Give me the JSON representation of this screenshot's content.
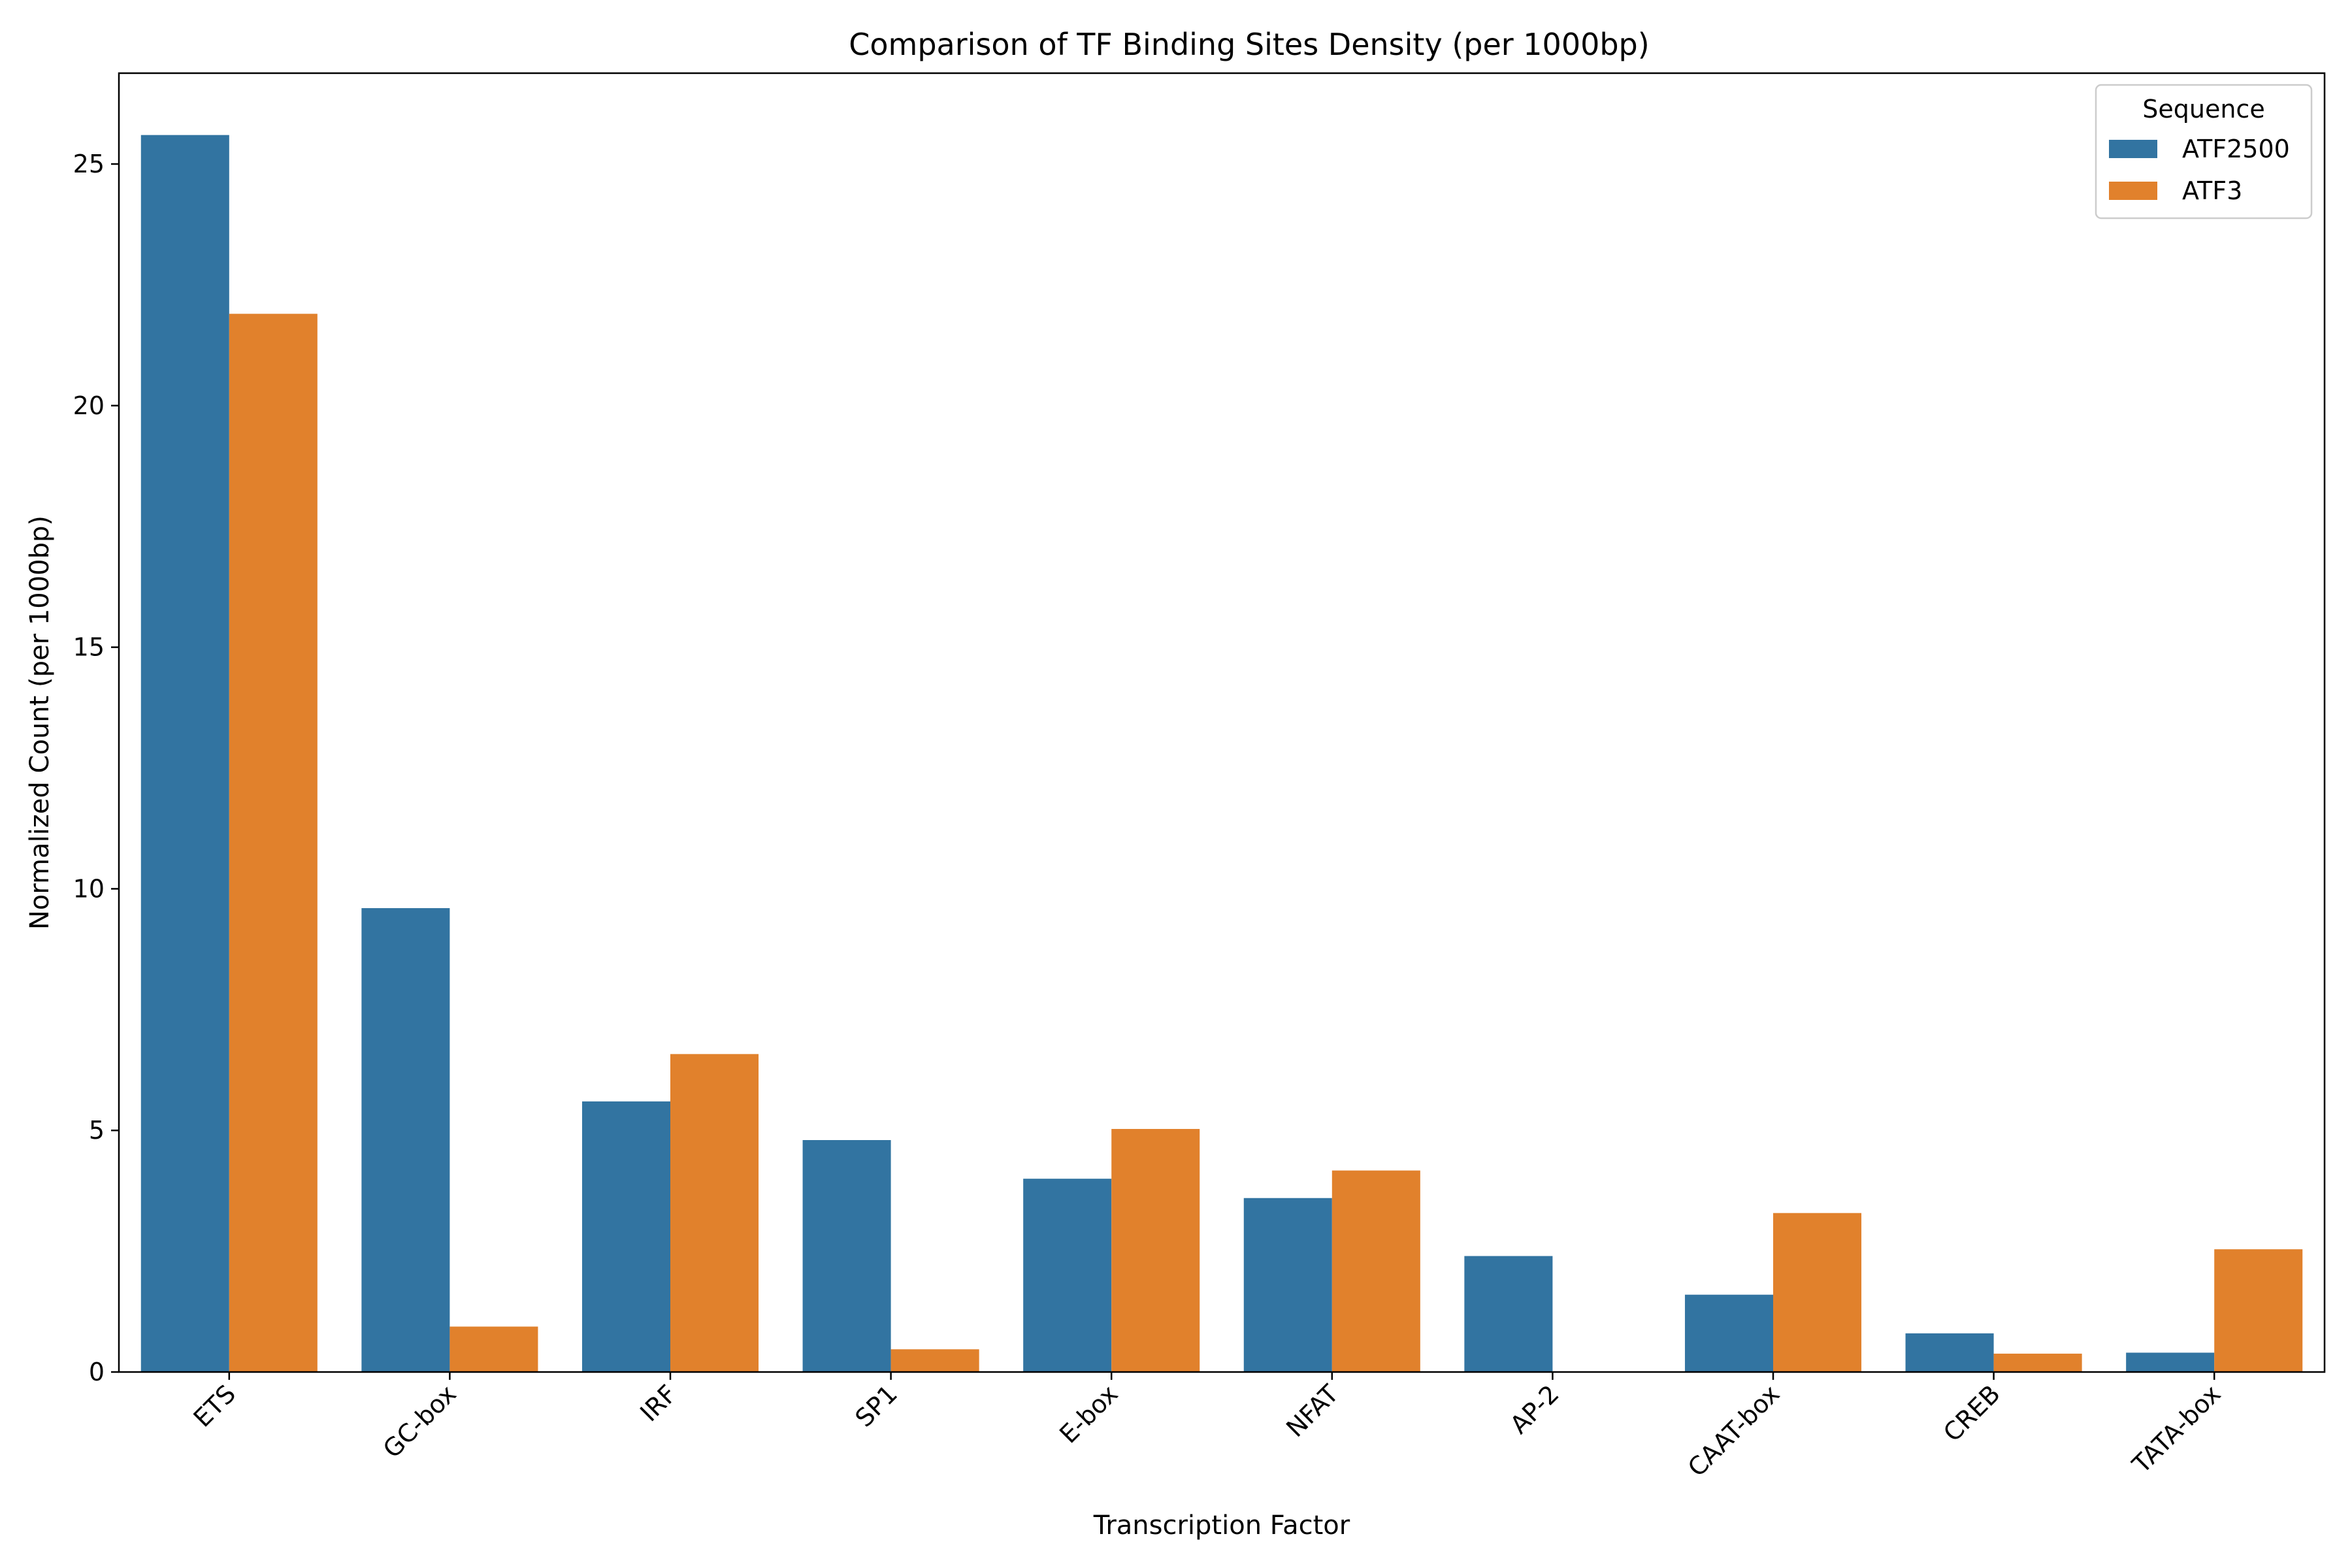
{
  "chart_data": {
    "type": "bar",
    "title": "Comparison of TF Binding Sites Density (per 1000bp)",
    "xlabel": "Transcription Factor",
    "ylabel": "Normalized Count (per 1000bp)",
    "categories": [
      "ETS",
      "GC-box",
      "IRF",
      "SP1",
      "E-box",
      "NFAT",
      "AP-2",
      "CAAT-box",
      "CREB",
      "TATA-box"
    ],
    "series": [
      {
        "name": "ATF2500",
        "color": "#3274a1",
        "values": [
          25.6,
          9.6,
          5.6,
          4.8,
          4.0,
          3.6,
          2.4,
          1.6,
          0.8,
          0.4
        ]
      },
      {
        "name": "ATF3",
        "color": "#e1812c",
        "values": [
          21.9,
          0.94,
          6.58,
          0.47,
          5.03,
          4.17,
          0.0,
          3.29,
          0.38,
          2.54
        ]
      }
    ],
    "ylim": [
      0,
      26.88
    ],
    "yticks": [
      0,
      5,
      10,
      15,
      20,
      25
    ],
    "legend": {
      "title": "Sequence",
      "position": "top-right"
    },
    "grid": false
  }
}
